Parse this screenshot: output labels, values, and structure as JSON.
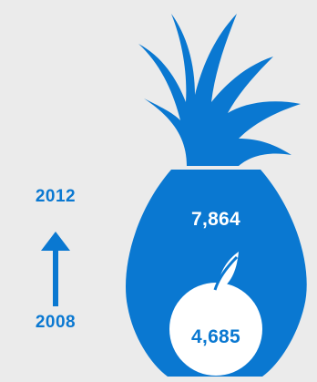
{
  "years": {
    "end": "2012",
    "start": "2008"
  },
  "values": {
    "end": "7,864",
    "start": "4,685"
  },
  "colors": {
    "background": "#ebebeb",
    "accent": "#0a78d1",
    "light": "#ffffff"
  },
  "icons": {
    "fruit": "pineapple-icon",
    "inner": "apple-icon",
    "arrow": "arrow-up-icon"
  }
}
